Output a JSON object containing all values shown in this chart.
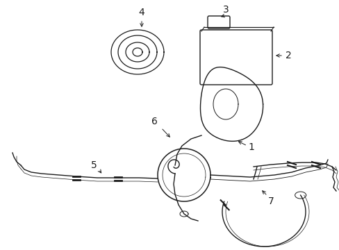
{
  "background_color": "#ffffff",
  "line_color": "#1a1a1a",
  "label_color": "#000000",
  "label_fontsize": 10,
  "fig_w": 4.89,
  "fig_h": 3.6,
  "dpi": 100
}
